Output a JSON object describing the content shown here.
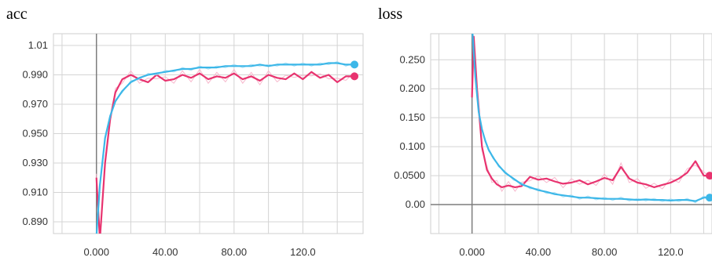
{
  "colors": {
    "series_a": "#e8336f",
    "series_a_raw": "#f7b8cd",
    "series_b": "#3cb7e8",
    "series_b_raw": "#a9dff5",
    "grid": "#d4d4d4",
    "zero_line": "#7d7d7d"
  },
  "chart_data": [
    {
      "type": "line",
      "title": "acc",
      "xlabel": "",
      "ylabel": "",
      "grid": true,
      "xlim": [
        -25,
        155
      ],
      "ylim": [
        0.882,
        1.018
      ],
      "x_ticks": [
        0,
        40,
        80,
        120
      ],
      "x_tick_labels": [
        "0.000",
        "40.00",
        "80.00",
        "120.0"
      ],
      "y_ticks": [
        1.01,
        0.99,
        0.97,
        0.95,
        0.93,
        0.91,
        0.89
      ],
      "y_tick_labels": [
        "1.01",
        "0.990",
        "0.970",
        "0.950",
        "0.930",
        "0.910",
        "0.890"
      ],
      "series": [
        {
          "color": "#e8336f",
          "x": [
            0,
            2,
            5,
            8,
            11,
            15,
            20,
            25,
            30,
            35,
            40,
            45,
            50,
            55,
            60,
            65,
            70,
            75,
            80,
            85,
            90,
            95,
            100,
            105,
            110,
            115,
            120,
            125,
            130,
            135,
            140,
            145,
            150
          ],
          "values": [
            0.92,
            0.878,
            0.93,
            0.96,
            0.978,
            0.987,
            0.99,
            0.987,
            0.985,
            0.99,
            0.986,
            0.987,
            0.99,
            0.988,
            0.991,
            0.987,
            0.989,
            0.988,
            0.991,
            0.987,
            0.989,
            0.986,
            0.99,
            0.988,
            0.987,
            0.991,
            0.987,
            0.992,
            0.988,
            0.99,
            0.985,
            0.989,
            0.989
          ]
        },
        {
          "color": "#3cb7e8",
          "x": [
            0,
            2,
            5,
            8,
            11,
            15,
            20,
            25,
            30,
            35,
            40,
            45,
            50,
            55,
            60,
            65,
            70,
            75,
            80,
            85,
            90,
            95,
            100,
            105,
            110,
            115,
            120,
            125,
            130,
            135,
            140,
            145,
            150
          ],
          "values": [
            0.88,
            0.915,
            0.947,
            0.962,
            0.972,
            0.979,
            0.985,
            0.988,
            0.99,
            0.991,
            0.992,
            0.993,
            0.994,
            0.994,
            0.995,
            0.995,
            0.995,
            0.996,
            0.996,
            0.996,
            0.996,
            0.997,
            0.996,
            0.997,
            0.997,
            0.997,
            0.997,
            0.997,
            0.997,
            0.998,
            0.998,
            0.997,
            0.997
          ]
        }
      ]
    },
    {
      "type": "line",
      "title": "loss",
      "xlabel": "",
      "ylabel": "",
      "grid": true,
      "xlim": [
        -25,
        145
      ],
      "ylim": [
        -0.05,
        0.295
      ],
      "x_ticks": [
        0,
        40,
        80,
        120
      ],
      "x_tick_labels": [
        "0.000",
        "40.00",
        "80.00",
        "120.0"
      ],
      "y_ticks": [
        0.25,
        0.2,
        0.15,
        0.1,
        0.05,
        0.0
      ],
      "y_tick_labels": [
        "0.250",
        "0.200",
        "0.150",
        "0.100",
        "0.0500",
        "0.00"
      ],
      "series": [
        {
          "color": "#e8336f",
          "x": [
            0,
            1,
            3,
            6,
            9,
            12,
            15,
            18,
            22,
            26,
            30,
            35,
            40,
            45,
            50,
            55,
            60,
            65,
            70,
            75,
            80,
            85,
            90,
            95,
            100,
            105,
            110,
            115,
            120,
            125,
            130,
            135,
            140,
            145
          ],
          "values": [
            0.185,
            0.29,
            0.2,
            0.1,
            0.06,
            0.045,
            0.035,
            0.03,
            0.033,
            0.03,
            0.032,
            0.048,
            0.043,
            0.045,
            0.04,
            0.036,
            0.038,
            0.042,
            0.035,
            0.04,
            0.046,
            0.042,
            0.065,
            0.045,
            0.038,
            0.035,
            0.03,
            0.034,
            0.038,
            0.045,
            0.055,
            0.075,
            0.05,
            0.05
          ]
        },
        {
          "color": "#3cb7e8",
          "x": [
            0,
            2,
            4,
            6,
            8,
            10,
            13,
            16,
            20,
            25,
            30,
            35,
            40,
            45,
            50,
            55,
            60,
            65,
            70,
            75,
            80,
            85,
            90,
            95,
            100,
            105,
            110,
            115,
            120,
            125,
            130,
            135,
            140,
            145
          ],
          "values": [
            0.31,
            0.22,
            0.16,
            0.13,
            0.11,
            0.095,
            0.08,
            0.068,
            0.055,
            0.045,
            0.035,
            0.03,
            0.025,
            0.022,
            0.018,
            0.016,
            0.014,
            0.012,
            0.012,
            0.011,
            0.01,
            0.01,
            0.01,
            0.009,
            0.008,
            0.009,
            0.008,
            0.008,
            0.007,
            0.008,
            0.008,
            0.006,
            0.012,
            0.012
          ]
        }
      ]
    }
  ]
}
